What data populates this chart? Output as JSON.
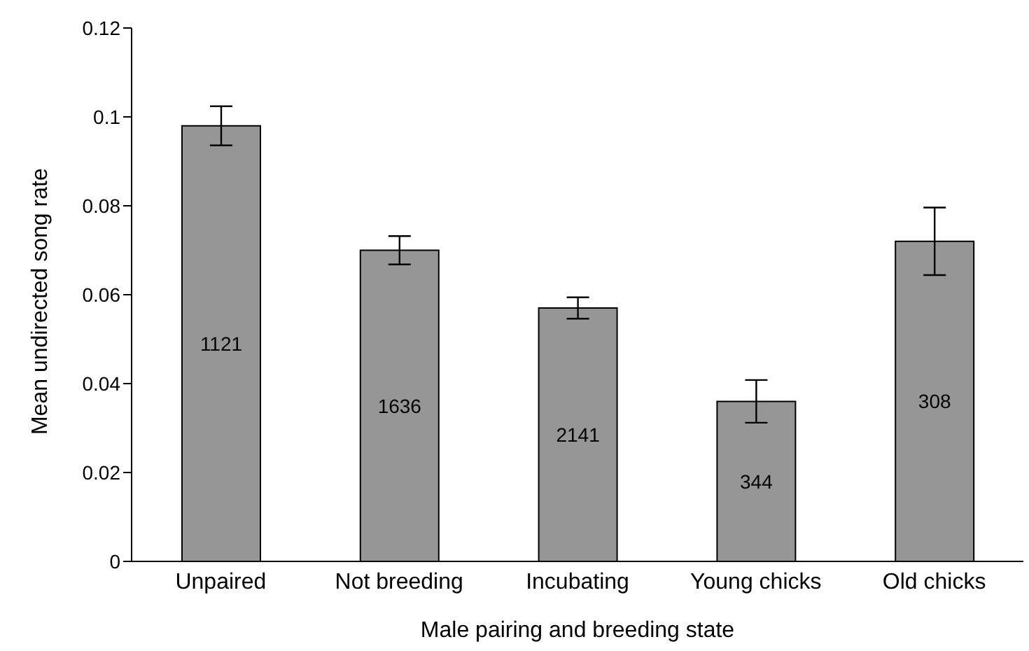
{
  "chart_data": {
    "type": "bar",
    "xlabel": "Male pairing and breeding state",
    "ylabel": "Mean undirected song rate",
    "categories": [
      "Unpaired",
      "Not breeding",
      "Incubating",
      "Young chicks",
      "Old chicks"
    ],
    "values": [
      0.098,
      0.07,
      0.057,
      0.036,
      0.072
    ],
    "errors": [
      0.0044,
      0.0032,
      0.0024,
      0.0048,
      0.0076
    ],
    "color": "#969696",
    "ylim": [
      0,
      0.12
    ],
    "yticks": [
      0,
      0.02,
      0.04,
      0.06,
      0.08,
      0.1,
      0.12
    ],
    "grid": false,
    "legend": false,
    "annotations": [
      "1121",
      "1636",
      "2141",
      "344",
      "308"
    ]
  }
}
